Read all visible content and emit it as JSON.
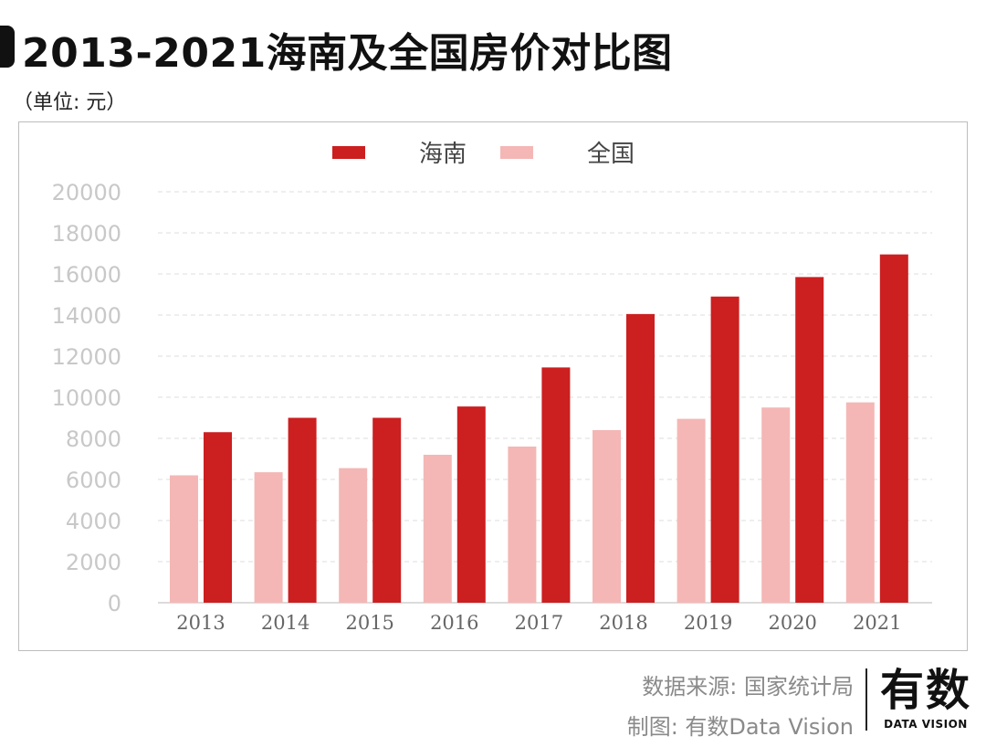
{
  "header": {
    "title": "2013-2021海南及全国房价对比图",
    "unit": "（单位: 元）"
  },
  "footer": {
    "source": "数据来源: 国家统计局",
    "credit": "制图: 有数Data Vision"
  },
  "logo": {
    "main": "有数",
    "sub": "DATA VISION"
  },
  "chart_data": {
    "type": "bar",
    "title": "2013-2021海南及全国房价对比图",
    "xlabel": "",
    "ylabel": "",
    "categories": [
      "2013",
      "2014",
      "2015",
      "2016",
      "2017",
      "2018",
      "2019",
      "2020",
      "2021"
    ],
    "series": [
      {
        "name": "海南",
        "color": "#cc1f20",
        "values": [
          8300,
          9000,
          9000,
          9550,
          11450,
          14050,
          14900,
          15850,
          16950
        ]
      },
      {
        "name": "全国",
        "color": "#f4b7b5",
        "values": [
          6200,
          6350,
          6550,
          7200,
          7600,
          8400,
          8950,
          9500,
          9750
        ]
      }
    ],
    "series_draw_order": [
      "全国",
      "海南"
    ],
    "ylim": [
      0,
      20000
    ],
    "yticks": [
      "0",
      "2000",
      "4000",
      "6000",
      "8000",
      "10000",
      "12000",
      "14000",
      "16000",
      "18000",
      "20000"
    ],
    "grid": true,
    "legend": "top-center"
  }
}
